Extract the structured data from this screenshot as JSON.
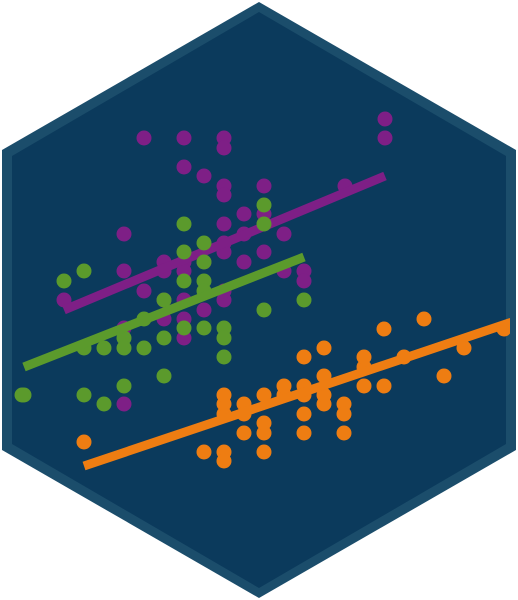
{
  "colors": {
    "background": "#0b3a5c",
    "border": "#1b4d6b",
    "series_purple": "#7e1f86",
    "series_green": "#5b9a2c",
    "series_orange": "#ee7d12"
  },
  "chart_data": {
    "type": "scatter",
    "grid": false,
    "axes": false,
    "xlim": [
      0,
      500
    ],
    "ylim": [
      0,
      500
    ],
    "series": [
      {
        "color": "#7e1f86",
        "points": [
          [
            144,
            462
          ],
          [
            184,
            462
          ],
          [
            224,
            462
          ],
          [
            224,
            452
          ],
          [
            385,
            481
          ],
          [
            385,
            462
          ],
          [
            184,
            433
          ],
          [
            204,
            424
          ],
          [
            224,
            414
          ],
          [
            224,
            405
          ],
          [
            264,
            414
          ],
          [
            244,
            386
          ],
          [
            224,
            376
          ],
          [
            264,
            386
          ],
          [
            264,
            376
          ],
          [
            244,
            366
          ],
          [
            224,
            357
          ],
          [
            284,
            366
          ],
          [
            124,
            366
          ],
          [
            124,
            329
          ],
          [
            164,
            338
          ],
          [
            164,
            329
          ],
          [
            184,
            338
          ],
          [
            184,
            329
          ],
          [
            204,
            338
          ],
          [
            224,
            348
          ],
          [
            244,
            338
          ],
          [
            264,
            348
          ],
          [
            284,
            329
          ],
          [
            304,
            329
          ],
          [
            304,
            319
          ],
          [
            64,
            300
          ],
          [
            144,
            309
          ],
          [
            164,
            300
          ],
          [
            184,
            300
          ],
          [
            204,
            290
          ],
          [
            224,
            300
          ],
          [
            224,
            309
          ],
          [
            184,
            281
          ],
          [
            164,
            281
          ],
          [
            184,
            262
          ],
          [
            124,
            272
          ],
          [
            124,
            196
          ],
          [
            345,
            414
          ]
        ],
        "trend": [
          [
            64,
            290
          ],
          [
            385,
            424
          ]
        ]
      },
      {
        "color": "#5b9a2c",
        "points": [
          [
            64,
            319
          ],
          [
            84,
            329
          ],
          [
            184,
            376
          ],
          [
            204,
            357
          ],
          [
            184,
            348
          ],
          [
            204,
            338
          ],
          [
            264,
            395
          ],
          [
            264,
            376
          ],
          [
            184,
            319
          ],
          [
            204,
            319
          ],
          [
            204,
            309
          ],
          [
            164,
            300
          ],
          [
            144,
            281
          ],
          [
            84,
            252
          ],
          [
            104,
            252
          ],
          [
            124,
            262
          ],
          [
            124,
            252
          ],
          [
            144,
            252
          ],
          [
            164,
            262
          ],
          [
            184,
            272
          ],
          [
            204,
            272
          ],
          [
            224,
            272
          ],
          [
            224,
            262
          ],
          [
            224,
            243
          ],
          [
            164,
            224
          ],
          [
            304,
            300
          ],
          [
            264,
            290
          ],
          [
            24,
            205
          ],
          [
            84,
            205
          ],
          [
            104,
            196
          ],
          [
            124,
            214
          ],
          [
            22,
            205
          ]
        ],
        "trend": [
          [
            24,
            233
          ],
          [
            304,
            343
          ]
        ]
      },
      {
        "color": "#ee7d12",
        "points": [
          [
            84,
            158
          ],
          [
            204,
            148
          ],
          [
            224,
            148
          ],
          [
            224,
            139
          ],
          [
            264,
            148
          ],
          [
            244,
            167
          ],
          [
            264,
            167
          ],
          [
            264,
            177
          ],
          [
            224,
            186
          ],
          [
            224,
            196
          ],
          [
            224,
            205
          ],
          [
            244,
            196
          ],
          [
            244,
            186
          ],
          [
            264,
            205
          ],
          [
            284,
            205
          ],
          [
            284,
            214
          ],
          [
            304,
            205
          ],
          [
            304,
            186
          ],
          [
            304,
            167
          ],
          [
            324,
            196
          ],
          [
            324,
            205
          ],
          [
            324,
            224
          ],
          [
            344,
            196
          ],
          [
            344,
            186
          ],
          [
            344,
            167
          ],
          [
            364,
            214
          ],
          [
            364,
            233
          ],
          [
            364,
            243
          ],
          [
            384,
            214
          ],
          [
            384,
            271
          ],
          [
            404,
            243
          ],
          [
            424,
            281
          ],
          [
            444,
            224
          ],
          [
            464,
            252
          ],
          [
            504,
            271
          ],
          [
            304,
            243
          ],
          [
            324,
            252
          ],
          [
            304,
            214
          ]
        ],
        "trend": [
          [
            84,
            134
          ],
          [
            518,
            280
          ]
        ]
      }
    ]
  }
}
